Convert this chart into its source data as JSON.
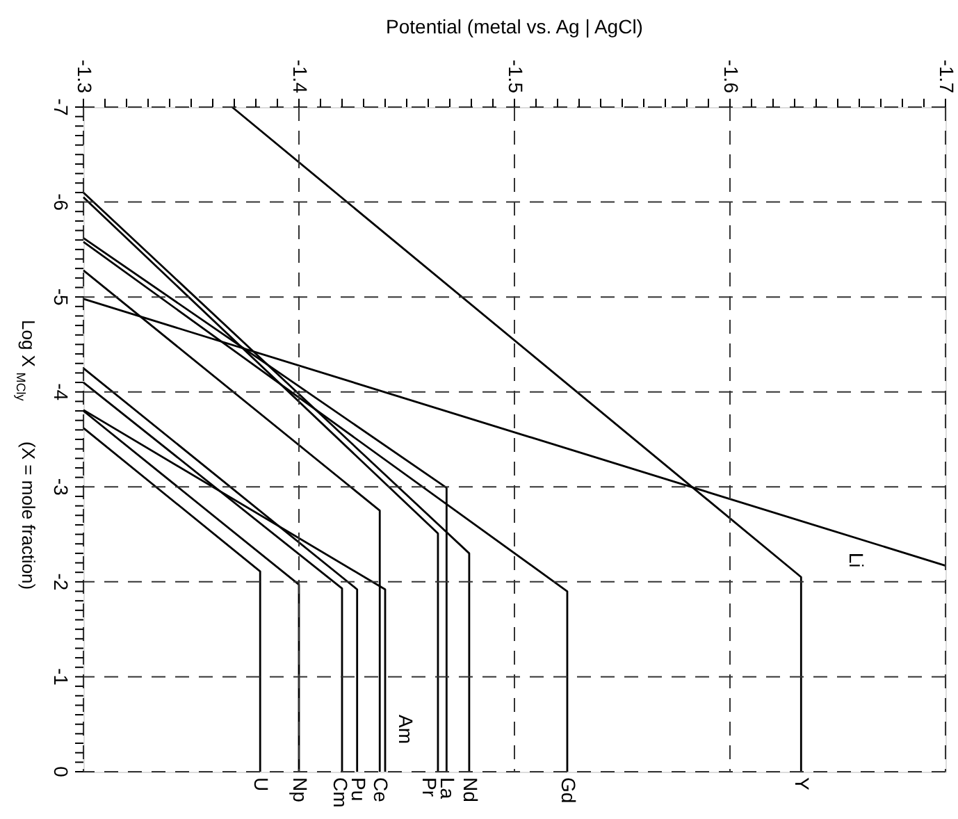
{
  "chart_data": {
    "type": "line",
    "xlabel": "Potential (metal vs. Ag | AgCl)",
    "ylabel": "Log X$_{MCly}$ (X = mole fraction)",
    "xlim": [
      -1.3,
      -1.7
    ],
    "ylim": [
      0,
      -7
    ],
    "xticks": [
      -1.3,
      {
        "value": -1.31,
        "label": null
      },
      {
        "value": -1.32,
        "label": null
      },
      {
        "value": -1.33,
        "label": null
      },
      {
        "value": -1.34,
        "label": null
      },
      {
        "value": -1.35,
        "label": null
      },
      {
        "value": -1.36,
        "label": null
      },
      {
        "value": -1.37,
        "label": null
      },
      {
        "value": -1.38,
        "label": null
      },
      {
        "value": -1.39,
        "label": null
      },
      -1.4,
      {
        "value": -1.41,
        "label": null
      },
      {
        "value": -1.42,
        "label": null
      },
      {
        "value": -1.43,
        "label": null
      },
      {
        "value": -1.44,
        "label": null
      },
      {
        "value": -1.45,
        "label": null
      },
      {
        "value": -1.46,
        "label": null
      },
      {
        "value": -1.47,
        "label": null
      },
      {
        "value": -1.48,
        "label": null
      },
      {
        "value": -1.49,
        "label": null
      },
      -1.5,
      {
        "value": -1.51,
        "label": null
      },
      {
        "value": -1.52,
        "label": null
      },
      {
        "value": -1.53,
        "label": null
      },
      {
        "value": -1.54,
        "label": null
      },
      {
        "value": -1.55,
        "label": null
      },
      {
        "value": -1.56,
        "label": null
      },
      {
        "value": -1.57,
        "label": null
      },
      {
        "value": -1.58,
        "label": null
      },
      {
        "value": -1.59,
        "label": null
      },
      -1.6,
      {
        "value": -1.61,
        "label": null
      },
      {
        "value": -1.62,
        "label": null
      },
      {
        "value": -1.63,
        "label": null
      },
      {
        "value": -1.64,
        "label": null
      },
      {
        "value": -1.65,
        "label": null
      },
      {
        "value": -1.66,
        "label": null
      },
      {
        "value": -1.67,
        "label": null
      },
      {
        "value": -1.68,
        "label": null
      },
      {
        "value": -1.69,
        "label": null
      },
      -1.7
    ],
    "yticks": [
      -7,
      {
        "value": -6.9,
        "label": null
      },
      {
        "value": -6.8,
        "label": null
      },
      {
        "value": -6.7,
        "label": null
      },
      {
        "value": -6.6,
        "label": null
      },
      {
        "value": -6.5,
        "label": null
      },
      {
        "value": -6.4,
        "label": null
      },
      {
        "value": -6.3,
        "label": null
      },
      {
        "value": -6.2,
        "label": null
      },
      {
        "value": -6.1,
        "label": null
      },
      -6,
      {
        "value": -5.9,
        "label": null
      },
      {
        "value": -5.8,
        "label": null
      },
      {
        "value": -5.7,
        "label": null
      },
      {
        "value": -5.6,
        "label": null
      },
      {
        "value": -5.5,
        "label": null
      },
      {
        "value": -5.4,
        "label": null
      },
      {
        "value": -5.3,
        "label": null
      },
      {
        "value": -5.2,
        "label": null
      },
      {
        "value": -5.1,
        "label": null
      },
      -5,
      {
        "value": -4.9,
        "label": null
      },
      {
        "value": -4.8,
        "label": null
      },
      {
        "value": -4.7,
        "label": null
      },
      {
        "value": -4.6,
        "label": null
      },
      {
        "value": -4.5,
        "label": null
      },
      {
        "value": -4.4,
        "label": null
      },
      {
        "value": -4.3,
        "label": null
      },
      {
        "value": -4.2,
        "label": null
      },
      {
        "value": -4.1,
        "label": null
      },
      -4,
      {
        "value": -3.9,
        "label": null
      },
      {
        "value": -3.8,
        "label": null
      },
      {
        "value": -3.7,
        "label": null
      },
      {
        "value": -3.6,
        "label": null
      },
      {
        "value": -3.5,
        "label": null
      },
      {
        "value": -3.4,
        "label": null
      },
      {
        "value": -3.3,
        "label": null
      },
      {
        "value": -3.2,
        "label": null
      },
      {
        "value": -3.1,
        "label": null
      },
      -3,
      {
        "value": -2.9,
        "label": null
      },
      {
        "value": -2.8,
        "label": null
      },
      {
        "value": -2.7,
        "label": null
      },
      {
        "value": -2.6,
        "label": null
      },
      {
        "value": -2.5,
        "label": null
      },
      {
        "value": -2.4,
        "label": null
      },
      {
        "value": -2.3,
        "label": null
      },
      {
        "value": -2.2,
        "label": null
      },
      {
        "value": -2.1,
        "label": null
      },
      -2,
      {
        "value": -1.9,
        "label": null
      },
      {
        "value": -1.8,
        "label": null
      },
      {
        "value": -1.7,
        "label": null
      },
      {
        "value": -1.6,
        "label": null
      },
      {
        "value": -1.5,
        "label": null
      },
      {
        "value": -1.4,
        "label": null
      },
      {
        "value": -1.3,
        "label": null
      },
      {
        "value": -1.2,
        "label": null
      },
      {
        "value": -1.1,
        "label": null
      },
      -1,
      {
        "value": -0.9,
        "label": null
      },
      {
        "value": -0.8,
        "label": null
      },
      {
        "value": -0.7,
        "label": null
      },
      {
        "value": -0.6,
        "label": null
      },
      {
        "value": -0.5,
        "label": null
      },
      {
        "value": -0.4,
        "label": null
      },
      {
        "value": -0.3,
        "label": null
      },
      {
        "value": -0.2,
        "label": null
      },
      {
        "value": -0.1,
        "label": null
      },
      0
    ],
    "grid": true,
    "legend": false,
    "marker": "none",
    "line_style": "solid",
    "series": [
      {
        "name": "U",
        "color": "#000000",
        "x": [
          -1.3,
          -1.382,
          -1.382
        ],
        "values": [
          -3.62,
          -2.11,
          0
        ]
      },
      {
        "name": "Np",
        "color": "#000000",
        "x": [
          -1.3,
          -1.4,
          -1.4
        ],
        "values": [
          -3.8,
          -1.97,
          0
        ]
      },
      {
        "name": "Cm",
        "color": "#000000",
        "x": [
          -1.3,
          -1.42,
          -1.42
        ],
        "values": [
          -4.1,
          -1.93,
          0
        ]
      },
      {
        "name": "Pu",
        "color": "#000000",
        "x": [
          -1.3,
          -1.427,
          -1.427
        ],
        "values": [
          -4.25,
          -1.92,
          0
        ]
      },
      {
        "name": "Ce",
        "color": "#000000",
        "x": [
          -1.3,
          -1.4375,
          -1.4375
        ],
        "values": [
          -5.28,
          -2.75,
          0
        ]
      },
      {
        "name": "Am",
        "color": "#000000",
        "x": [
          -1.3,
          -1.44,
          -1.44
        ],
        "values": [
          -3.81,
          -1.92,
          0
        ]
      },
      {
        "name": "Pr",
        "color": "#000000",
        "x": [
          -1.3,
          -1.4645,
          -1.4645
        ],
        "values": [
          -6.05,
          -2.51,
          0
        ]
      },
      {
        "name": "La",
        "color": "#000000",
        "x": [
          -1.3,
          -1.4685,
          -1.4685
        ],
        "values": [
          -5.62,
          -2.99,
          0
        ]
      },
      {
        "name": "Nd",
        "color": "#000000",
        "x": [
          -1.3,
          -1.479,
          -1.479
        ],
        "values": [
          -6.1,
          -2.3,
          0
        ]
      },
      {
        "name": "Gd",
        "color": "#000000",
        "x": [
          -1.3,
          -1.5245,
          -1.5245
        ],
        "values": [
          -5.58,
          -1.9,
          0
        ]
      },
      {
        "name": "Y",
        "color": "#000000",
        "x": [
          -1.369,
          -1.633,
          -1.633
        ],
        "values": [
          -7,
          -2.05,
          0
        ]
      },
      {
        "name": "Li",
        "color": "#000000",
        "x": [
          -1.3,
          -1.7
        ],
        "values": [
          -4.98,
          -2.17
        ]
      }
    ]
  }
}
